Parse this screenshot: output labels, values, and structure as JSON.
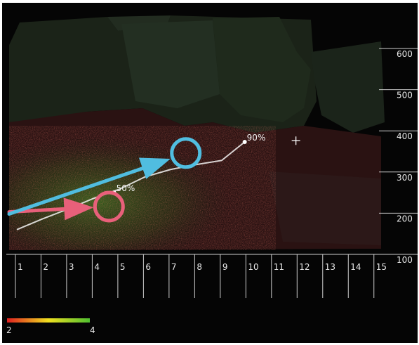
{
  "chart_data": {
    "type": "scatter",
    "x_ticks": [
      "1",
      "2",
      "3",
      "4",
      "5",
      "6",
      "7",
      "8",
      "9",
      "10",
      "11",
      "12",
      "13",
      "14",
      "15"
    ],
    "y_ticks": [
      "100",
      "200",
      "300",
      "400",
      "500",
      "600"
    ],
    "xlim": [
      0.7,
      15.5
    ],
    "ylim": [
      100,
      600
    ],
    "percentile_line": {
      "x": [
        1.0,
        2.0,
        3.0,
        4.0,
        5.0,
        6.0,
        7.0,
        8.0,
        9.0,
        9.9
      ],
      "y": [
        172,
        198,
        222,
        248,
        270,
        300,
        318,
        330,
        340,
        385
      ]
    },
    "annotations": [
      {
        "label": "50%",
        "x": 4.8,
        "y": 262
      },
      {
        "label": "90%",
        "x": 9.9,
        "y": 385
      }
    ],
    "crosshair": {
      "x": 11.9,
      "y": 388
    },
    "colorbar": {
      "min_label": "2",
      "max_label": "4",
      "colors": [
        "#e02020",
        "#f0e020",
        "#50c030"
      ]
    },
    "markers": [
      {
        "shape": "circle",
        "color": "#e8607a",
        "x": 4.6,
        "y": 228
      },
      {
        "shape": "circle",
        "color": "#50bde0",
        "x": 7.6,
        "y": 358
      }
    ],
    "arrows": [
      {
        "color": "#e8607a",
        "x_from": 0.7,
        "y_from": 215,
        "x_to": 4.0,
        "y_to": 226
      },
      {
        "color": "#50bde0",
        "x_from": 0.7,
        "y_from": 210,
        "x_to": 7.0,
        "y_to": 344
      }
    ],
    "colors": {
      "background": "#050505",
      "axis": "#cfcfcf",
      "percentile": "#f4f4f4"
    }
  }
}
